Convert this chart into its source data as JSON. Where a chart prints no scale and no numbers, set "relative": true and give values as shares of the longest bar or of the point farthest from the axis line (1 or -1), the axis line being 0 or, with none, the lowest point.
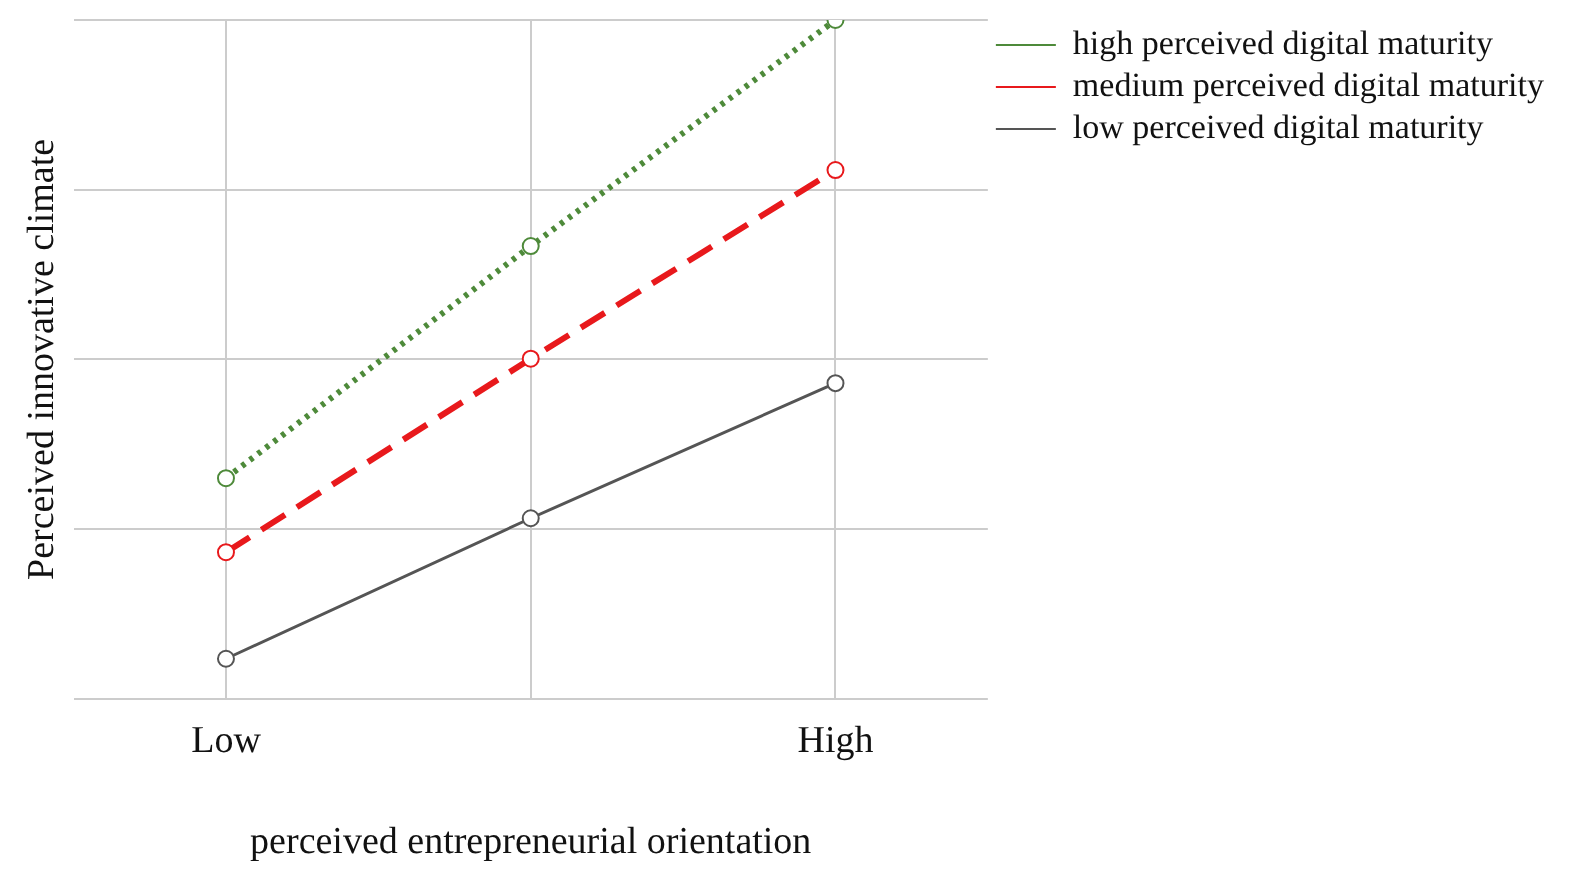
{
  "chart_data": {
    "type": "line",
    "relative": true,
    "xlabel": "perceived entrepreneurial orientation",
    "ylabel": "Perceived innovative climate",
    "categories": [
      "Low",
      null,
      "High"
    ],
    "series": [
      {
        "name": "high perceived digital maturity",
        "color": "#4e8a3a",
        "line_style": "dotted",
        "values": [
          0.325,
          0.667,
          1
        ]
      },
      {
        "name": "medium perceived digital maturity",
        "color": "#e8191c",
        "line_style": "dashed",
        "values": [
          0.216,
          0.501,
          0.779
        ]
      },
      {
        "name": "low perceived digital maturity",
        "color": "#555555",
        "line_style": "solid",
        "values": [
          0.059,
          0.266,
          0.465
        ]
      }
    ],
    "marker": "circle",
    "grid": true,
    "legend": "top right"
  }
}
